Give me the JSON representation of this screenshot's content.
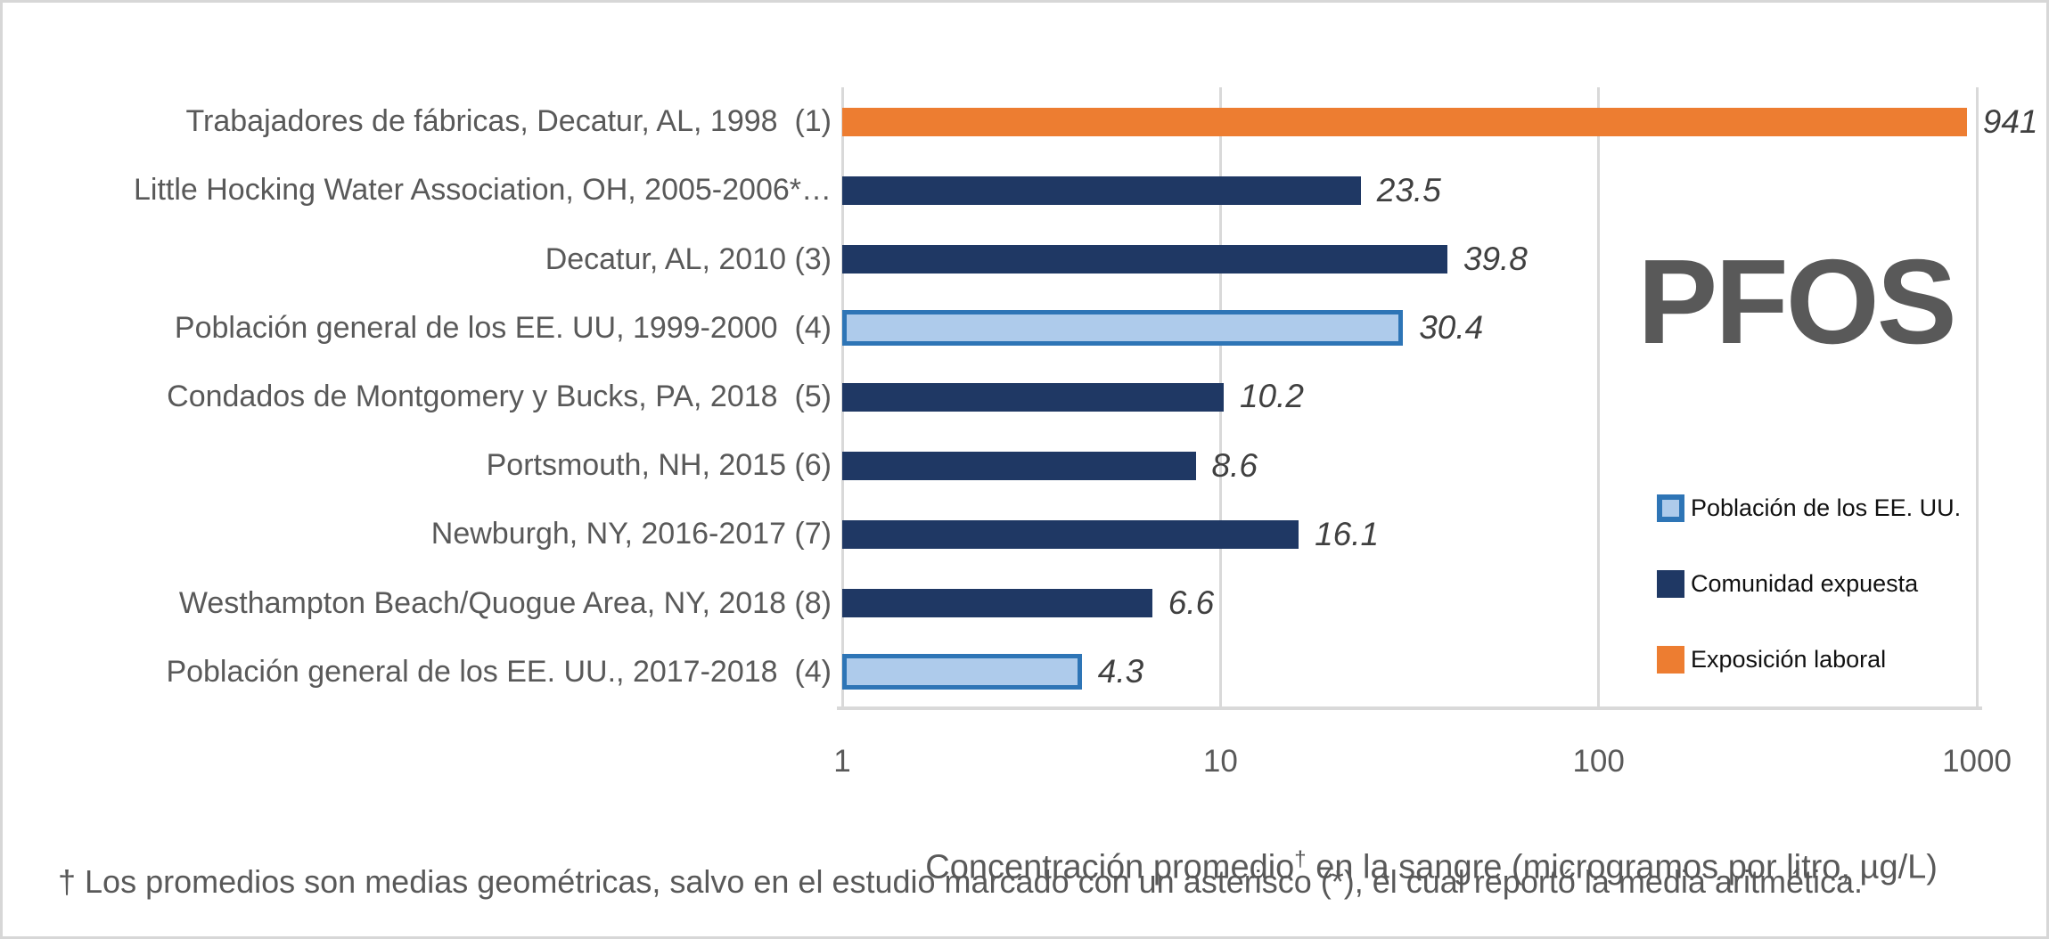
{
  "chart_data": {
    "type": "bar",
    "orientation": "horizontal",
    "x_scale": "log",
    "x_range": [
      1,
      1000
    ],
    "x_ticks": [
      {
        "value": 1,
        "label": "1"
      },
      {
        "value": 10,
        "label": "10"
      },
      {
        "value": 100,
        "label": "100"
      },
      {
        "value": 1000,
        "label": "1000"
      }
    ],
    "grid": true,
    "legend_position": "right-inside",
    "categories": [
      "Trabajadores de fábricas, Decatur, AL, 1998  (1)",
      "Little Hocking Water Association, OH, 2005-2006*…",
      "Decatur, AL, 2010 (3)",
      "Población general de los EE. UU, 1999-2000  (4)",
      "Condados de Montgomery y Bucks, PA, 2018  (5)",
      "Portsmouth, NH, 2015 (6)",
      "Newburgh, NY, 2016-2017 (7)",
      "Westhampton Beach/Quogue Area, NY, 2018 (8)",
      "Población general de los EE. UU., 2017-2018  (4)"
    ],
    "values": [
      941,
      23.5,
      39.8,
      30.4,
      10.2,
      8.6,
      16.1,
      6.6,
      4.3
    ],
    "value_labels": [
      "941",
      "23.5",
      "39.8",
      "30.4",
      "10.2",
      "8.6",
      "16.1",
      "6.6",
      "4.3"
    ],
    "series_by_row": [
      "occupational",
      "exposed",
      "exposed",
      "us_population",
      "exposed",
      "exposed",
      "exposed",
      "exposed",
      "us_population"
    ],
    "annotation": "PFOS",
    "xlabel_main": "Concentración promedio",
    "xlabel_sup": "†",
    "xlabel_rest": " en la sangre (microgramos por litro, µg/L)"
  },
  "legend": {
    "items": [
      {
        "label": "Población de los EE. UU.",
        "series": "us_population"
      },
      {
        "label": "Comunidad expuesta",
        "series": "exposed"
      },
      {
        "label": "Exposición laboral",
        "series": "occupational"
      }
    ]
  },
  "footnote": "† Los promedios son medias geométricas, salvo en el estudio marcado con un asterisco (*), el cual reportó la media aritmética.",
  "colors": {
    "occupational": "#ED7D31",
    "exposed": "#1F3864",
    "us_population_fill": "#AECBEB",
    "us_population_border": "#2E75B6",
    "gridline": "#D9D9D9",
    "axis_text": "#595959",
    "value_label": "#404040",
    "watermark": "#595959"
  }
}
